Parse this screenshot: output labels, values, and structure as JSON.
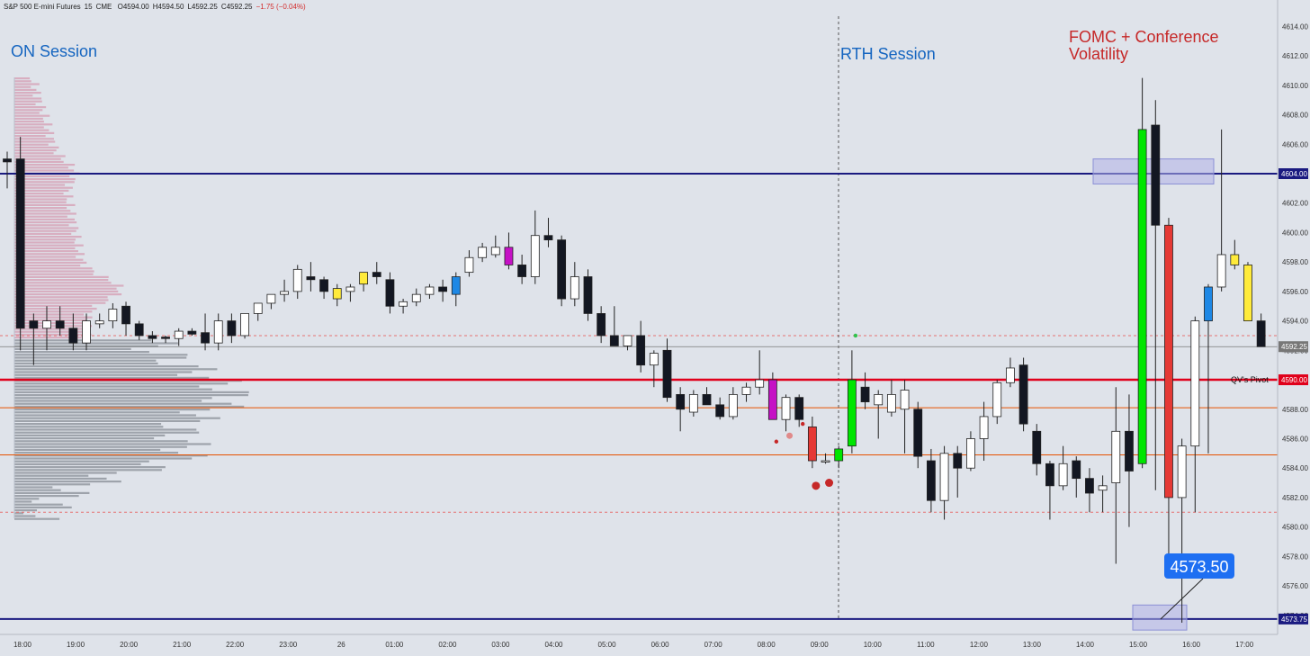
{
  "header": {
    "symbol": "S&P 500 E-mini Futures",
    "interval": "15",
    "exchange": "CME",
    "open": "O4594.00",
    "high": "H4594.50",
    "low": "L4592.25",
    "close": "C4592.25",
    "change": "−1.75 (−0.04%)"
  },
  "chart_data": {
    "type": "candlestick",
    "ylim": [
      4572,
      4615
    ],
    "y_ticks": [
      4574,
      4576,
      4578,
      4580,
      4582,
      4584,
      4586,
      4588,
      4590,
      4592,
      4594,
      4596,
      4598,
      4600,
      4602,
      4604,
      4606,
      4608,
      4610,
      4612,
      4614
    ],
    "x_ticks": [
      "18:00",
      "19:00",
      "20:00",
      "21:00",
      "22:00",
      "23:00",
      "26",
      "01:00",
      "02:00",
      "03:00",
      "04:00",
      "05:00",
      "06:00",
      "07:00",
      "08:00",
      "09:00",
      "10:00",
      "11:00",
      "12:00",
      "13:00",
      "14:00",
      "15:00",
      "16:00",
      "17:00",
      "18:00"
    ],
    "annotations": {
      "on_session": "ON Session",
      "rth_session": "RTH Session",
      "fomc_line1": "FOMC + Conference",
      "fomc_line2": "Volatility",
      "callout_value": "4573.50",
      "pivot_label": "QV's Pivot"
    },
    "price_lines": [
      {
        "label": "4604.00",
        "value": 4604.0,
        "color": "#1a1a80"
      },
      {
        "label": "4592.25",
        "value": 4592.25,
        "color": "#777777"
      },
      {
        "label": "4590.00",
        "value": 4590.0,
        "color": "#e0001b"
      },
      {
        "label": "4573.75",
        "value": 4573.75,
        "color": "#1a1a80"
      }
    ],
    "reference_levels": [
      {
        "value": 4588.1,
        "color": "#e65100",
        "style": "solid"
      },
      {
        "value": 4584.9,
        "color": "#e65100",
        "style": "solid"
      },
      {
        "value": 4593.0,
        "color": "#e57373",
        "style": "dashed"
      },
      {
        "value": 4581.0,
        "color": "#e57373",
        "style": "dashed"
      }
    ],
    "candles": [
      {
        "t": 0,
        "o": 4604.8,
        "h": 4605.5,
        "l": 4603.0,
        "c": 4605.0,
        "color": "black"
      },
      {
        "t": 1,
        "o": 4605.0,
        "h": 4606.5,
        "l": 4592.0,
        "c": 4593.5,
        "color": "black"
      },
      {
        "t": 2,
        "o": 4594.0,
        "h": 4594.5,
        "l": 4591.0,
        "c": 4593.5,
        "color": "black"
      },
      {
        "t": 3,
        "o": 4593.5,
        "h": 4595.0,
        "l": 4592.0,
        "c": 4594.0,
        "color": "white"
      },
      {
        "t": 4,
        "o": 4594.0,
        "h": 4595.0,
        "l": 4593.0,
        "c": 4593.5,
        "color": "black"
      },
      {
        "t": 5,
        "o": 4593.5,
        "h": 4594.5,
        "l": 4592.0,
        "c": 4592.5,
        "color": "black"
      },
      {
        "t": 6,
        "o": 4592.5,
        "h": 4594.5,
        "l": 4592.0,
        "c": 4594.0,
        "color": "white"
      },
      {
        "t": 7,
        "o": 4594.0,
        "h": 4594.5,
        "l": 4593.5,
        "c": 4593.8,
        "color": "white"
      },
      {
        "t": 8,
        "o": 4594.0,
        "h": 4595.2,
        "l": 4593.5,
        "c": 4594.8,
        "color": "white"
      },
      {
        "t": 9,
        "o": 4595.0,
        "h": 4595.3,
        "l": 4593.0,
        "c": 4593.8,
        "color": "black"
      },
      {
        "t": 10,
        "o": 4593.8,
        "h": 4594.0,
        "l": 4592.7,
        "c": 4593.0,
        "color": "black"
      },
      {
        "t": 11,
        "o": 4593.0,
        "h": 4593.3,
        "l": 4592.5,
        "c": 4592.8,
        "color": "black"
      },
      {
        "t": 12,
        "o": 4592.8,
        "h": 4593.0,
        "l": 4592.5,
        "c": 4592.9,
        "color": "black"
      },
      {
        "t": 13,
        "o": 4592.8,
        "h": 4593.5,
        "l": 4592.3,
        "c": 4593.3,
        "color": "white"
      },
      {
        "t": 14,
        "o": 4593.3,
        "h": 4593.5,
        "l": 4593.0,
        "c": 4593.1,
        "color": "black"
      },
      {
        "t": 15,
        "o": 4593.2,
        "h": 4594.5,
        "l": 4592.0,
        "c": 4592.5,
        "color": "black"
      },
      {
        "t": 16,
        "o": 4592.5,
        "h": 4594.5,
        "l": 4592.0,
        "c": 4594.0,
        "color": "white"
      },
      {
        "t": 17,
        "o": 4594.0,
        "h": 4594.5,
        "l": 4592.5,
        "c": 4593.0,
        "color": "black"
      },
      {
        "t": 18,
        "o": 4593.0,
        "h": 4594.5,
        "l": 4592.8,
        "c": 4594.5,
        "color": "white"
      },
      {
        "t": 19,
        "o": 4594.5,
        "h": 4595.0,
        "l": 4594.0,
        "c": 4595.2,
        "color": "white"
      },
      {
        "t": 20,
        "o": 4595.2,
        "h": 4595.8,
        "l": 4594.8,
        "c": 4595.8,
        "color": "white"
      },
      {
        "t": 21,
        "o": 4595.8,
        "h": 4596.8,
        "l": 4595.3,
        "c": 4596.0,
        "color": "white"
      },
      {
        "t": 22,
        "o": 4596.0,
        "h": 4597.8,
        "l": 4595.5,
        "c": 4597.5,
        "color": "white"
      },
      {
        "t": 23,
        "o": 4597.0,
        "h": 4598.0,
        "l": 4596.0,
        "c": 4596.8,
        "color": "black"
      },
      {
        "t": 24,
        "o": 4596.8,
        "h": 4597.0,
        "l": 4595.5,
        "c": 4596.0,
        "color": "black"
      },
      {
        "t": 25,
        "o": 4595.5,
        "h": 4596.5,
        "l": 4595.0,
        "c": 4596.2,
        "color": "yellow"
      },
      {
        "t": 26,
        "o": 4596.0,
        "h": 4596.5,
        "l": 4595.3,
        "c": 4596.3,
        "color": "white"
      },
      {
        "t": 27,
        "o": 4596.5,
        "h": 4597.3,
        "l": 4596.0,
        "c": 4597.3,
        "color": "yellow"
      },
      {
        "t": 28,
        "o": 4597.0,
        "h": 4598.0,
        "l": 4596.5,
        "c": 4597.3,
        "color": "black"
      },
      {
        "t": 29,
        "o": 4596.8,
        "h": 4597.3,
        "l": 4594.5,
        "c": 4595.0,
        "color": "black"
      },
      {
        "t": 30,
        "o": 4595.0,
        "h": 4595.5,
        "l": 4594.5,
        "c": 4595.3,
        "color": "white"
      },
      {
        "t": 31,
        "o": 4595.3,
        "h": 4596.2,
        "l": 4595.0,
        "c": 4595.8,
        "color": "white"
      },
      {
        "t": 32,
        "o": 4595.8,
        "h": 4596.5,
        "l": 4595.5,
        "c": 4596.3,
        "color": "white"
      },
      {
        "t": 33,
        "o": 4596.3,
        "h": 4596.8,
        "l": 4595.3,
        "c": 4596.0,
        "color": "black"
      },
      {
        "t": 34,
        "o": 4595.8,
        "h": 4597.3,
        "l": 4595.0,
        "c": 4597.0,
        "color": "blue"
      },
      {
        "t": 35,
        "o": 4597.3,
        "h": 4598.8,
        "l": 4597.0,
        "c": 4598.3,
        "color": "white"
      },
      {
        "t": 36,
        "o": 4598.3,
        "h": 4599.3,
        "l": 4598.0,
        "c": 4599.0,
        "color": "white"
      },
      {
        "t": 37,
        "o": 4599.0,
        "h": 4599.8,
        "l": 4598.3,
        "c": 4598.5,
        "color": "white"
      },
      {
        "t": 38,
        "o": 4599.0,
        "h": 4600.0,
        "l": 4597.5,
        "c": 4597.8,
        "color": "magenta"
      },
      {
        "t": 39,
        "o": 4597.8,
        "h": 4598.5,
        "l": 4596.5,
        "c": 4597.0,
        "color": "black"
      },
      {
        "t": 40,
        "o": 4597.0,
        "h": 4601.5,
        "l": 4596.5,
        "c": 4599.8,
        "color": "white"
      },
      {
        "t": 41,
        "o": 4599.8,
        "h": 4601.0,
        "l": 4599.0,
        "c": 4599.5,
        "color": "black"
      },
      {
        "t": 42,
        "o": 4599.5,
        "h": 4599.8,
        "l": 4595.0,
        "c": 4595.5,
        "color": "black"
      },
      {
        "t": 43,
        "o": 4595.5,
        "h": 4598.0,
        "l": 4595.0,
        "c": 4597.0,
        "color": "white"
      },
      {
        "t": 44,
        "o": 4597.0,
        "h": 4597.5,
        "l": 4594.0,
        "c": 4594.5,
        "color": "black"
      },
      {
        "t": 45,
        "o": 4594.5,
        "h": 4595.0,
        "l": 4592.5,
        "c": 4593.0,
        "color": "black"
      },
      {
        "t": 46,
        "o": 4593.0,
        "h": 4595.0,
        "l": 4592.5,
        "c": 4592.3,
        "color": "black"
      },
      {
        "t": 47,
        "o": 4592.3,
        "h": 4593.0,
        "l": 4592.0,
        "c": 4593.0,
        "color": "white"
      },
      {
        "t": 48,
        "o": 4593.0,
        "h": 4594.0,
        "l": 4590.5,
        "c": 4591.0,
        "color": "black"
      },
      {
        "t": 49,
        "o": 4591.0,
        "h": 4592.0,
        "l": 4589.5,
        "c": 4591.8,
        "color": "white"
      },
      {
        "t": 50,
        "o": 4592.0,
        "h": 4592.8,
        "l": 4588.5,
        "c": 4588.8,
        "color": "black"
      },
      {
        "t": 51,
        "o": 4589.0,
        "h": 4589.5,
        "l": 4586.5,
        "c": 4588.0,
        "color": "black"
      },
      {
        "t": 52,
        "o": 4587.8,
        "h": 4589.3,
        "l": 4587.5,
        "c": 4589.0,
        "color": "white"
      },
      {
        "t": 53,
        "o": 4589.0,
        "h": 4589.5,
        "l": 4588.5,
        "c": 4588.3,
        "color": "black"
      },
      {
        "t": 54,
        "o": 4588.3,
        "h": 4588.8,
        "l": 4587.3,
        "c": 4587.5,
        "color": "black"
      },
      {
        "t": 55,
        "o": 4587.5,
        "h": 4589.5,
        "l": 4587.3,
        "c": 4589.0,
        "color": "white"
      },
      {
        "t": 56,
        "o": 4589.0,
        "h": 4589.8,
        "l": 4588.5,
        "c": 4589.5,
        "color": "white"
      },
      {
        "t": 57,
        "o": 4589.5,
        "h": 4592.0,
        "l": 4589.0,
        "c": 4590.0,
        "color": "white"
      },
      {
        "t": 58,
        "o": 4590.0,
        "h": 4590.5,
        "l": 4587.5,
        "c": 4587.3,
        "color": "magenta"
      },
      {
        "t": 59,
        "o": 4587.3,
        "h": 4589.0,
        "l": 4586.5,
        "c": 4588.8,
        "color": "white"
      },
      {
        "t": 60,
        "o": 4588.8,
        "h": 4589.0,
        "l": 4586.8,
        "c": 4587.3,
        "color": "black"
      },
      {
        "t": 61,
        "o": 4586.8,
        "h": 4587.5,
        "l": 4584.0,
        "c": 4584.5,
        "color": "red"
      },
      {
        "t": 62,
        "o": 4584.5,
        "h": 4585.0,
        "l": 4584.3,
        "c": 4584.5,
        "color": "white"
      },
      {
        "t": 63,
        "o": 4584.5,
        "h": 4585.5,
        "l": 4584.0,
        "c": 4585.3,
        "color": "green"
      },
      {
        "t": 64,
        "o": 4585.5,
        "h": 4592.0,
        "l": 4585.0,
        "c": 4590.0,
        "color": "green"
      },
      {
        "t": 65,
        "o": 4589.5,
        "h": 4590.5,
        "l": 4588.0,
        "c": 4588.5,
        "color": "black"
      },
      {
        "t": 66,
        "o": 4588.3,
        "h": 4589.3,
        "l": 4586.0,
        "c": 4589.0,
        "color": "white"
      },
      {
        "t": 67,
        "o": 4589.0,
        "h": 4590.0,
        "l": 4587.5,
        "c": 4587.8,
        "color": "white"
      },
      {
        "t": 68,
        "o": 4589.3,
        "h": 4590.0,
        "l": 4585.0,
        "c": 4588.0,
        "color": "white"
      },
      {
        "t": 69,
        "o": 4588.0,
        "h": 4588.5,
        "l": 4584.0,
        "c": 4584.8,
        "color": "black"
      },
      {
        "t": 70,
        "o": 4584.5,
        "h": 4585.3,
        "l": 4581.0,
        "c": 4581.8,
        "color": "black"
      },
      {
        "t": 71,
        "o": 4581.8,
        "h": 4585.5,
        "l": 4580.5,
        "c": 4585.0,
        "color": "white"
      },
      {
        "t": 72,
        "o": 4585.0,
        "h": 4585.5,
        "l": 4582.0,
        "c": 4584.0,
        "color": "black"
      },
      {
        "t": 73,
        "o": 4584.0,
        "h": 4586.5,
        "l": 4583.8,
        "c": 4586.0,
        "color": "white"
      },
      {
        "t": 74,
        "o": 4586.0,
        "h": 4588.5,
        "l": 4584.5,
        "c": 4587.5,
        "color": "white"
      },
      {
        "t": 75,
        "o": 4587.5,
        "h": 4590.0,
        "l": 4587.0,
        "c": 4589.8,
        "color": "white"
      },
      {
        "t": 76,
        "o": 4589.8,
        "h": 4591.5,
        "l": 4589.5,
        "c": 4590.8,
        "color": "white"
      },
      {
        "t": 77,
        "o": 4591.0,
        "h": 4591.5,
        "l": 4586.5,
        "c": 4587.0,
        "color": "black"
      },
      {
        "t": 78,
        "o": 4586.5,
        "h": 4587.0,
        "l": 4583.5,
        "c": 4584.3,
        "color": "black"
      },
      {
        "t": 79,
        "o": 4584.3,
        "h": 4584.5,
        "l": 4580.5,
        "c": 4582.8,
        "color": "black"
      },
      {
        "t": 80,
        "o": 4582.8,
        "h": 4585.5,
        "l": 4582.5,
        "c": 4584.3,
        "color": "white"
      },
      {
        "t": 81,
        "o": 4584.5,
        "h": 4584.8,
        "l": 4582.0,
        "c": 4583.3,
        "color": "black"
      },
      {
        "t": 82,
        "o": 4583.3,
        "h": 4584.0,
        "l": 4581.0,
        "c": 4582.3,
        "color": "black"
      },
      {
        "t": 83,
        "o": 4582.5,
        "h": 4583.5,
        "l": 4581.0,
        "c": 4582.8,
        "color": "white"
      },
      {
        "t": 84,
        "o": 4583.0,
        "h": 4589.5,
        "l": 4577.5,
        "c": 4586.5,
        "color": "white"
      },
      {
        "t": 85,
        "o": 4586.5,
        "h": 4589.0,
        "l": 4580.0,
        "c": 4583.8,
        "color": "black"
      },
      {
        "t": 86,
        "o": 4584.3,
        "h": 4610.5,
        "l": 4584.0,
        "c": 4607.0,
        "color": "green"
      },
      {
        "t": 87,
        "o": 4607.3,
        "h": 4609.0,
        "l": 4582.5,
        "c": 4600.5,
        "color": "black"
      },
      {
        "t": 88,
        "o": 4600.5,
        "h": 4601.0,
        "l": 4577.0,
        "c": 4582.0,
        "color": "red"
      },
      {
        "t": 89,
        "o": 4582.0,
        "h": 4586.0,
        "l": 4573.5,
        "c": 4585.5,
        "color": "white"
      },
      {
        "t": 90,
        "o": 4585.5,
        "h": 4594.3,
        "l": 4581.0,
        "c": 4594.0,
        "color": "white"
      },
      {
        "t": 91,
        "o": 4594.0,
        "h": 4596.5,
        "l": 4585.0,
        "c": 4596.3,
        "color": "blue"
      },
      {
        "t": 92,
        "o": 4596.3,
        "h": 4607.0,
        "l": 4596.0,
        "c": 4598.5,
        "color": "white"
      },
      {
        "t": 93,
        "o": 4598.5,
        "h": 4599.5,
        "l": 4597.5,
        "c": 4597.8,
        "color": "yellow"
      },
      {
        "t": 94,
        "o": 4597.8,
        "h": 4598.0,
        "l": 4594.0,
        "c": 4594.0,
        "color": "yellow"
      },
      {
        "t": 95,
        "o": 4594.0,
        "h": 4594.5,
        "l": 4592.25,
        "c": 4592.25,
        "color": "black"
      }
    ],
    "markers": [
      {
        "t": 58,
        "value": 4585.8,
        "size": "s"
      },
      {
        "t": 59,
        "value": 4586.2,
        "size": "m"
      },
      {
        "t": 60,
        "value": 4587.0,
        "size": "s"
      },
      {
        "t": 61,
        "value": 4582.8,
        "size": "l"
      },
      {
        "t": 62,
        "value": 4583.0,
        "size": "l"
      },
      {
        "t": 64,
        "value": 4593.0,
        "size": "s",
        "color": "green"
      }
    ],
    "colors": {
      "background": "#dfe3ea",
      "candle_black": "#131722",
      "candle_white": "#ffffff",
      "candle_green": "#00e600",
      "candle_red": "#e53935",
      "candle_yellow": "#ffeb3b",
      "candle_blue": "#1e88e5",
      "candle_magenta": "#c511c5",
      "profile_top": "#d8aec0",
      "profile_bottom": "#9ea3ab",
      "annotation_blue": "#1565c0",
      "annotation_red": "#c62828",
      "highlight_box": "#b0b3e6"
    }
  }
}
